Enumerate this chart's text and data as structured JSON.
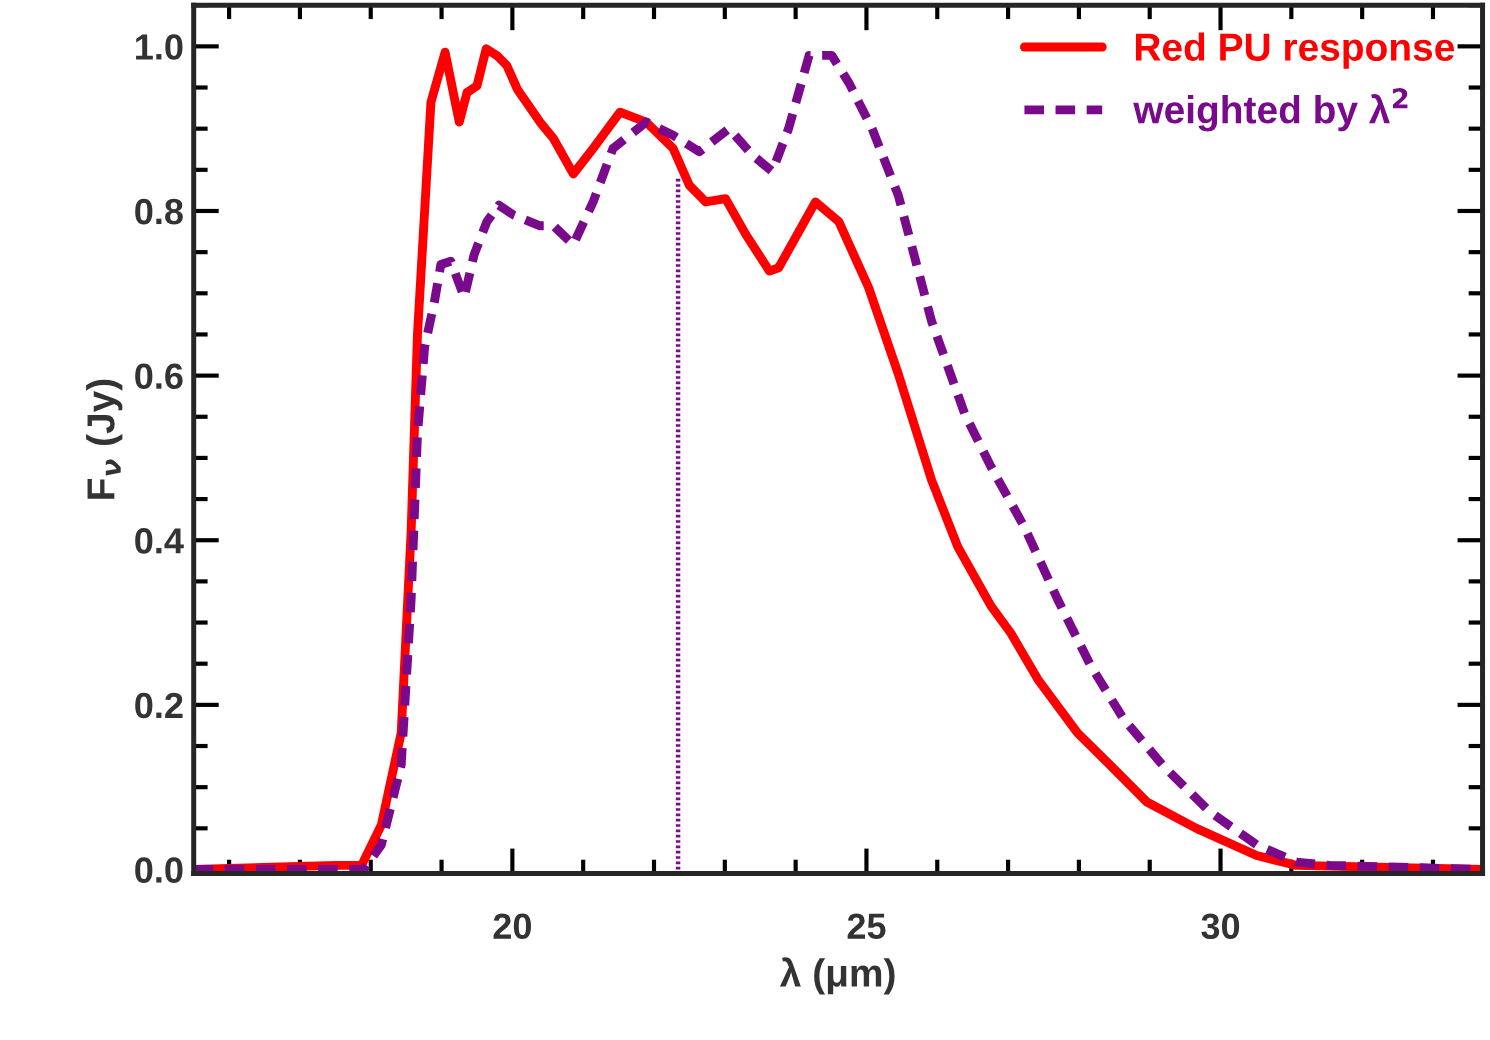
{
  "chart_data": {
    "type": "line",
    "xlabel": "λ (μm)",
    "ylabel": "F$_{ν}$ (Jy)",
    "xlim": [
      15.5,
      33.7
    ],
    "ylim": [
      -0.005,
      1.05
    ],
    "xticks": [
      20,
      25,
      30
    ],
    "yticks": [
      {
        "value": 0,
        "label": "0.0"
      },
      {
        "value": 0.2,
        "label": "0.2"
      },
      {
        "value": 0.4,
        "label": "0.4"
      },
      {
        "value": 0.6,
        "label": "0.6"
      },
      {
        "value": 0.8,
        "label": "0.8"
      },
      {
        "value": 1.0,
        "label": "1.0"
      }
    ],
    "legend": "top right",
    "series": [
      {
        "name": "Red PU response",
        "color": "#ff0000",
        "line_style": "solid",
        "x": [
          15.5,
          17.5,
          17.87,
          18.15,
          18.43,
          18.57,
          18.66,
          18.85,
          19.05,
          19.25,
          19.36,
          19.5,
          19.63,
          19.78,
          19.92,
          20.07,
          20.39,
          20.58,
          20.86,
          21.14,
          21.52,
          21.89,
          22.27,
          22.5,
          22.73,
          23.01,
          23.3,
          23.63,
          23.76,
          24.28,
          24.61,
          25.03,
          25.45,
          25.92,
          26.29,
          26.76,
          27.04,
          27.42,
          27.98,
          28.45,
          28.96,
          29.66,
          30.51,
          31.07,
          33.7
        ],
        "values": [
          0,
          0.005,
          0.005,
          0.054,
          0.166,
          0.41,
          0.65,
          0.932,
          0.993,
          0.908,
          0.944,
          0.952,
          0.997,
          0.989,
          0.977,
          0.948,
          0.908,
          0.888,
          0.845,
          0.876,
          0.92,
          0.908,
          0.876,
          0.831,
          0.811,
          0.815,
          0.771,
          0.727,
          0.731,
          0.811,
          0.787,
          0.707,
          0.602,
          0.473,
          0.392,
          0.32,
          0.287,
          0.231,
          0.166,
          0.126,
          0.082,
          0.05,
          0.017,
          0.005,
          0
        ]
      },
      {
        "name": "weighted by λ$^{2}$",
        "color": "#7a0a8c",
        "line_style": "dashed",
        "x": [
          15.5,
          17.9,
          18.15,
          18.43,
          18.57,
          18.66,
          18.76,
          18.9,
          18.99,
          19.13,
          19.32,
          19.46,
          19.64,
          19.81,
          20.02,
          20.39,
          20.58,
          20.86,
          21.14,
          21.42,
          21.89,
          22.27,
          22.64,
          23.06,
          23.39,
          23.67,
          23.9,
          24.19,
          24.51,
          24.75,
          25.08,
          25.45,
          25.92,
          26.39,
          26.76,
          27.23,
          27.7,
          28.17,
          28.63,
          29.19,
          29.85,
          30.51,
          31.07,
          31.54,
          33.7
        ],
        "values": [
          0,
          0,
          0.03,
          0.127,
          0.328,
          0.529,
          0.634,
          0.69,
          0.735,
          0.739,
          0.695,
          0.747,
          0.787,
          0.807,
          0.795,
          0.782,
          0.782,
          0.759,
          0.811,
          0.876,
          0.908,
          0.892,
          0.872,
          0.9,
          0.868,
          0.848,
          0.9,
          0.989,
          0.989,
          0.956,
          0.9,
          0.819,
          0.666,
          0.553,
          0.489,
          0.416,
          0.328,
          0.247,
          0.183,
          0.126,
          0.07,
          0.03,
          0.009,
          0.005,
          0
        ]
      },
      {
        "color": "#7a0a8c",
        "line_style": "dotted",
        "x": [
          22.34,
          22.34
        ],
        "values": [
          0,
          0.84
        ]
      }
    ]
  }
}
